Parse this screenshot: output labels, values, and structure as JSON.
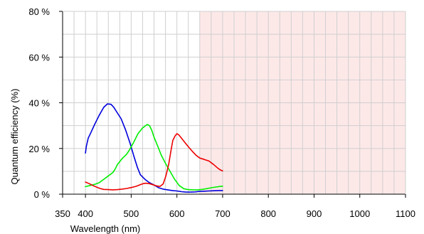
{
  "chart_data": {
    "type": "line",
    "title": "",
    "xlabel": "Wavelength (nm)",
    "ylabel": "Quantum efficiency (%)",
    "xlim": [
      350,
      1100
    ],
    "ylim": [
      0,
      80
    ],
    "x_ticks": [
      350,
      400,
      500,
      600,
      700,
      800,
      900,
      1000,
      1100
    ],
    "x_tick_labels": [
      "350",
      "400",
      "500",
      "600",
      "700",
      "800",
      "900",
      "1000",
      "1100"
    ],
    "y_ticks": [
      0,
      20,
      40,
      60,
      80
    ],
    "y_tick_labels": [
      "0 %",
      "20 %",
      "40 %",
      "60 %",
      "80 %"
    ],
    "grid": true,
    "grid_color": "#cfcfcf",
    "shaded_region": {
      "x_from": 650,
      "x_to": 1100,
      "color": "#fde8e8"
    },
    "series": [
      {
        "color": "#0000dd",
        "points": [
          [
            400,
            18
          ],
          [
            402,
            21
          ],
          [
            406,
            24.5
          ],
          [
            412,
            27
          ],
          [
            420,
            30.5
          ],
          [
            430,
            34.5
          ],
          [
            440,
            38
          ],
          [
            448,
            39.5
          ],
          [
            456,
            39.3
          ],
          [
            462,
            38
          ],
          [
            470,
            35.5
          ],
          [
            478,
            33
          ],
          [
            488,
            28
          ],
          [
            498,
            22
          ],
          [
            506,
            16.5
          ],
          [
            514,
            11.5
          ],
          [
            520,
            8.5
          ],
          [
            530,
            6.5
          ],
          [
            540,
            5
          ],
          [
            550,
            4
          ],
          [
            560,
            2.8
          ],
          [
            570,
            2.2
          ],
          [
            580,
            1.9
          ],
          [
            590,
            1.6
          ],
          [
            600,
            1.4
          ],
          [
            610,
            1.1
          ],
          [
            620,
            0.9
          ],
          [
            630,
            0.9
          ],
          [
            640,
            1.0
          ],
          [
            650,
            1.2
          ],
          [
            660,
            1.3
          ],
          [
            670,
            1.4
          ],
          [
            680,
            1.5
          ],
          [
            690,
            1.6
          ],
          [
            700,
            1.6
          ]
        ]
      },
      {
        "color": "#00ee00",
        "points": [
          [
            400,
            3.3
          ],
          [
            410,
            3.8
          ],
          [
            420,
            4.3
          ],
          [
            430,
            5.0
          ],
          [
            440,
            6.5
          ],
          [
            450,
            8.0
          ],
          [
            460,
            9.5
          ],
          [
            465,
            11
          ],
          [
            470,
            13
          ],
          [
            480,
            15.5
          ],
          [
            490,
            17.5
          ],
          [
            495,
            19
          ],
          [
            505,
            22.5
          ],
          [
            515,
            26.5
          ],
          [
            525,
            29
          ],
          [
            535,
            30.5
          ],
          [
            540,
            30
          ],
          [
            545,
            28
          ],
          [
            550,
            25
          ],
          [
            558,
            21
          ],
          [
            566,
            17
          ],
          [
            575,
            13.5
          ],
          [
            585,
            10
          ],
          [
            595,
            6.5
          ],
          [
            605,
            3.8
          ],
          [
            615,
            2.4
          ],
          [
            625,
            2.0
          ],
          [
            635,
            1.9
          ],
          [
            645,
            1.9
          ],
          [
            655,
            2.1
          ],
          [
            665,
            2.4
          ],
          [
            675,
            2.8
          ],
          [
            685,
            3.1
          ],
          [
            695,
            3.4
          ],
          [
            700,
            3.5
          ]
        ]
      },
      {
        "color": "#ee0000",
        "points": [
          [
            400,
            5.3
          ],
          [
            408,
            4.6
          ],
          [
            416,
            3.8
          ],
          [
            424,
            3.1
          ],
          [
            432,
            2.5
          ],
          [
            440,
            2.1
          ],
          [
            450,
            2.0
          ],
          [
            460,
            1.9
          ],
          [
            470,
            2.0
          ],
          [
            480,
            2.2
          ],
          [
            490,
            2.5
          ],
          [
            500,
            2.9
          ],
          [
            510,
            3.4
          ],
          [
            518,
            4.0
          ],
          [
            526,
            4.6
          ],
          [
            532,
            4.8
          ],
          [
            540,
            4.6
          ],
          [
            548,
            4.1
          ],
          [
            556,
            3.6
          ],
          [
            563,
            3.4
          ],
          [
            570,
            4.5
          ],
          [
            576,
            8
          ],
          [
            582,
            13
          ],
          [
            587,
            19
          ],
          [
            591,
            23.5
          ],
          [
            596,
            25.5
          ],
          [
            600,
            26.5
          ],
          [
            604,
            26
          ],
          [
            610,
            24.5
          ],
          [
            618,
            22.5
          ],
          [
            626,
            20.5
          ],
          [
            634,
            18.7
          ],
          [
            642,
            17
          ],
          [
            650,
            15.8
          ],
          [
            660,
            15.2
          ],
          [
            670,
            14.5
          ],
          [
            680,
            13
          ],
          [
            690,
            11.3
          ],
          [
            695,
            10.6
          ],
          [
            700,
            10.2
          ]
        ]
      }
    ]
  }
}
